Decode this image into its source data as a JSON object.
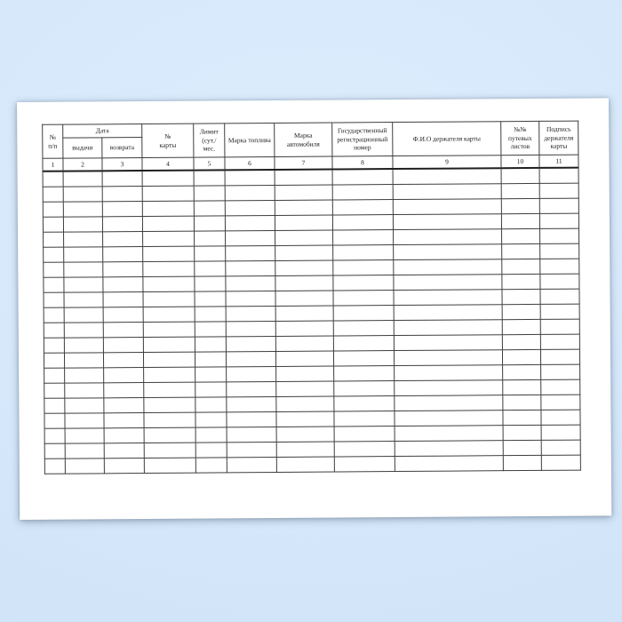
{
  "document": {
    "table": {
      "headers": {
        "no": "№\nп/п",
        "date": "Дата",
        "date_issue": "выдачи",
        "date_return": "возврата",
        "card_no": "№\nкарты",
        "limit": "Лимит\n(сут./\nмес.",
        "fuel_brand": "Марка топлива",
        "car_brand": "Марка\nавтомобиля",
        "state_reg_number": "Государственный\nрегистрационный\nномер",
        "holder_name": "Ф.И.О держателя карты",
        "waybill_numbers": "№№\nпутевых\nлистов",
        "holder_signature": "Подпись\nдержателя\nкарты"
      },
      "column_numbers": [
        "1",
        "2",
        "3",
        "4",
        "5",
        "6",
        "7",
        "8",
        "9",
        "10",
        "11"
      ],
      "column_count": 11,
      "data_row_count": 20
    },
    "colors": {
      "background": "#d5e7fa",
      "background_light": "#ddeefd",
      "background_edge": "#cfe2f6",
      "page": "#ffffff",
      "grid": "#3e3e3e",
      "grid_heavy": "#1e1e1e",
      "text": "#1c1c1c"
    }
  }
}
